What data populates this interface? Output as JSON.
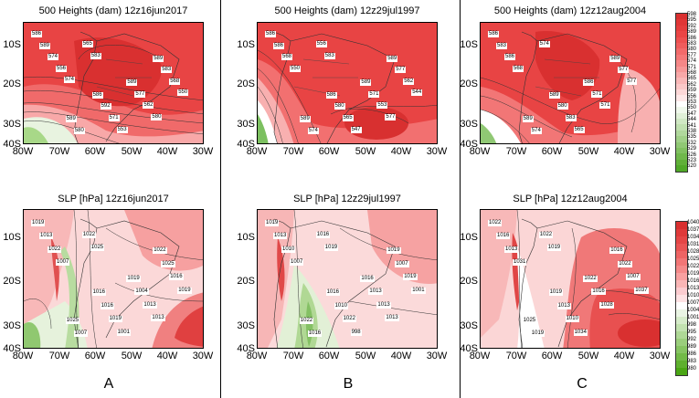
{
  "panels": {
    "a_top": {
      "title": "500 Heights (dam) 12z16jun2017"
    },
    "a_bot": {
      "title": "SLP [hPa] 12z16jun2017"
    },
    "b_top": {
      "title": "500 Heights (dam) 12z29jul1997"
    },
    "b_bot": {
      "title": "SLP [hPa] 12z29jul1997"
    },
    "c_top": {
      "title": "500 Heights (dam) 12z12aug2004"
    },
    "c_bot": {
      "title": "SLP [hPa] 12z12aug2004"
    }
  },
  "axes": {
    "y_labels": [
      "10S",
      "20S",
      "30S",
      "40S"
    ],
    "x_labels": [
      "80W",
      "70W",
      "60W",
      "50W",
      "40W",
      "30W"
    ]
  },
  "column_letters": [
    "A",
    "B",
    "C"
  ],
  "colorbar_heights": {
    "labels": [
      "598",
      "595",
      "592",
      "589",
      "586",
      "583",
      "580",
      "577",
      "574",
      "571",
      "568",
      "565",
      "562",
      "559",
      "556",
      "553",
      "550",
      "547",
      "544",
      "541",
      "538",
      "535",
      "532",
      "529",
      "526",
      "523",
      "520"
    ],
    "colors": [
      "#d93030",
      "#e03636",
      "#e53d3d",
      "#ea4545",
      "#ee5050",
      "#f05c5c",
      "#f26a6a",
      "#f47878",
      "#f58787",
      "#f79797",
      "#f8a8a8",
      "#fab8b8",
      "#fbc8c8",
      "#fdd8d8",
      "#fee8e8",
      "#ffffff",
      "#f0f8ec",
      "#e0f0d8",
      "#d0e8c4",
      "#c0e0b0",
      "#b0d89c",
      "#a0d088",
      "#90c874",
      "#80c060",
      "#70b84c",
      "#60b038",
      "#50a828"
    ]
  },
  "colorbar_slp": {
    "labels": [
      "1040",
      "1037",
      "1034",
      "1031",
      "1028",
      "1025",
      "1022",
      "1019",
      "1016",
      "1013",
      "1010",
      "1007",
      "1004",
      "1001",
      "998",
      "995",
      "992",
      "989",
      "986",
      "983",
      "980"
    ],
    "colors": [
      "#d93030",
      "#df3a3a",
      "#e54646",
      "#ea5454",
      "#ee6464",
      "#f27676",
      "#f58a8a",
      "#f8a0a0",
      "#fab6b6",
      "#fcccd0",
      "#fee2e4",
      "#ffffff",
      "#eaf5e4",
      "#d6ecca",
      "#c2e2b0",
      "#aed896",
      "#9ace7c",
      "#86c462",
      "#72ba48",
      "#5eb02e",
      "#4aa614"
    ]
  },
  "contour_labels": {
    "a_top": [
      "586",
      "586",
      "589",
      "589",
      "589",
      "589",
      "592",
      "583",
      "580",
      "577",
      "574",
      "571",
      "568",
      "565",
      "562",
      "556",
      "553",
      "550",
      "583",
      "580",
      "574"
    ],
    "a_bot": [
      "1019",
      "1016",
      "1022",
      "1025",
      "1019",
      "1013",
      "1016",
      "1025",
      "1007",
      "1004",
      "1022",
      "1019",
      "1016",
      "1022",
      "1013",
      "1007",
      "1001",
      "1019",
      "1025",
      "1013"
    ],
    "b_top": [
      "586",
      "586",
      "589",
      "589",
      "589",
      "586",
      "580",
      "577",
      "574",
      "571",
      "568",
      "565",
      "562",
      "556",
      "553",
      "550",
      "547",
      "544",
      "583",
      "577"
    ],
    "b_bot": [
      "1019",
      "1016",
      "1019",
      "1022",
      "1016",
      "1013",
      "1010",
      "1007",
      "1016",
      "1013",
      "1010",
      "1022",
      "1019",
      "1016",
      "1013",
      "1007",
      "998",
      "1001",
      "1019",
      "1013"
    ],
    "c_top": [
      "586",
      "589",
      "589",
      "589",
      "586",
      "583",
      "580",
      "577",
      "574",
      "571",
      "586",
      "583",
      "577",
      "574",
      "571",
      "568",
      "565"
    ],
    "c_bot": [
      "1022",
      "1019",
      "1016",
      "1025",
      "1022",
      "1016",
      "1013",
      "1022",
      "1019",
      "1016",
      "1013",
      "1010",
      "1007",
      "1022",
      "1028",
      "1031",
      "1034",
      "1037",
      "1019"
    ]
  }
}
